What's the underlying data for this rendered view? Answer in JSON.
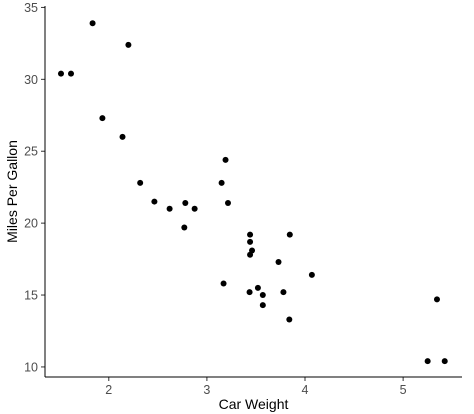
{
  "chart_data": {
    "type": "scatter",
    "title": "",
    "xlabel": "Car Weight",
    "ylabel": "Miles Per Gallon",
    "xlim": [
      1.35,
      5.6
    ],
    "ylim": [
      9.3,
      35.1
    ],
    "x_ticks": [
      2,
      3,
      4,
      5
    ],
    "y_ticks": [
      10,
      15,
      20,
      25,
      30,
      35
    ],
    "grid": false,
    "legend": "none",
    "point_color": "#000000",
    "series": [
      {
        "x": [
          2.62,
          2.875,
          2.32,
          3.215,
          3.44,
          3.46,
          3.57,
          3.19,
          3.15,
          3.44,
          3.44,
          4.07,
          3.73,
          3.78,
          5.25,
          5.424,
          5.345,
          2.2,
          1.615,
          1.835,
          2.465,
          3.52,
          3.435,
          3.84,
          3.845,
          1.935,
          2.14,
          1.513,
          3.17,
          2.77,
          3.57,
          2.78
        ],
        "y": [
          21.0,
          21.0,
          22.8,
          21.4,
          18.7,
          18.1,
          14.3,
          24.4,
          22.8,
          19.2,
          17.8,
          16.4,
          17.3,
          15.2,
          10.4,
          10.4,
          14.7,
          32.4,
          30.4,
          33.9,
          21.5,
          15.5,
          15.2,
          13.3,
          19.2,
          27.3,
          26.0,
          30.4,
          15.8,
          19.7,
          15.0,
          21.4
        ]
      }
    ]
  }
}
